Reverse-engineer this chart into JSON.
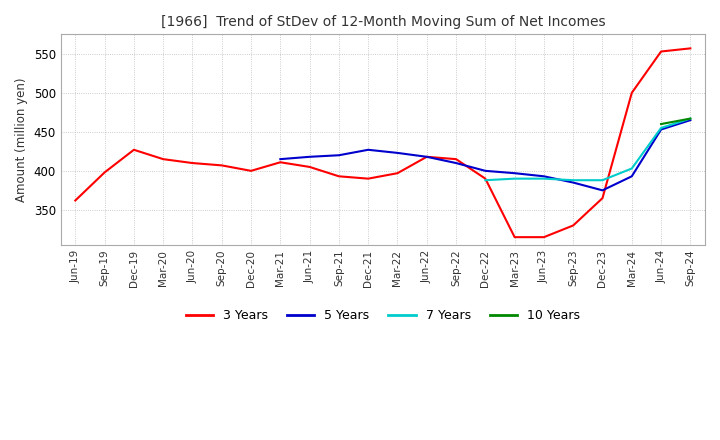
{
  "title": "[1966]  Trend of StDev of 12-Month Moving Sum of Net Incomes",
  "ylabel": "Amount (million yen)",
  "ylim": [
    305,
    575
  ],
  "yticks": [
    350,
    400,
    450,
    500,
    550
  ],
  "background_color": "#ffffff",
  "grid_color": "#bbbbbb",
  "grid_style": "dotted",
  "legend_labels": [
    "3 Years",
    "5 Years",
    "7 Years",
    "10 Years"
  ],
  "legend_colors": [
    "#ff0000",
    "#0000cc",
    "#00cccc",
    "#008800"
  ],
  "x_labels": [
    "Jun-19",
    "Sep-19",
    "Dec-19",
    "Mar-20",
    "Jun-20",
    "Sep-20",
    "Dec-20",
    "Mar-21",
    "Jun-21",
    "Sep-21",
    "Dec-21",
    "Mar-22",
    "Jun-22",
    "Sep-22",
    "Dec-22",
    "Mar-23",
    "Jun-23",
    "Sep-23",
    "Dec-23",
    "Mar-24",
    "Jun-24",
    "Sep-24"
  ],
  "series_3y": [
    362,
    398,
    427,
    415,
    410,
    407,
    400,
    411,
    405,
    393,
    390,
    397,
    418,
    415,
    390,
    315,
    315,
    330,
    365,
    500,
    553,
    557
  ],
  "series_5y": [
    null,
    null,
    null,
    null,
    null,
    null,
    null,
    415,
    418,
    420,
    427,
    423,
    418,
    410,
    400,
    397,
    393,
    385,
    375,
    393,
    453,
    465
  ],
  "series_7y": [
    null,
    null,
    null,
    null,
    null,
    null,
    null,
    null,
    null,
    null,
    null,
    null,
    null,
    null,
    388,
    390,
    390,
    388,
    388,
    403,
    455,
    467
  ],
  "series_10y": [
    null,
    null,
    null,
    null,
    null,
    null,
    null,
    null,
    null,
    null,
    null,
    null,
    null,
    null,
    null,
    null,
    null,
    null,
    null,
    null,
    460,
    467
  ]
}
